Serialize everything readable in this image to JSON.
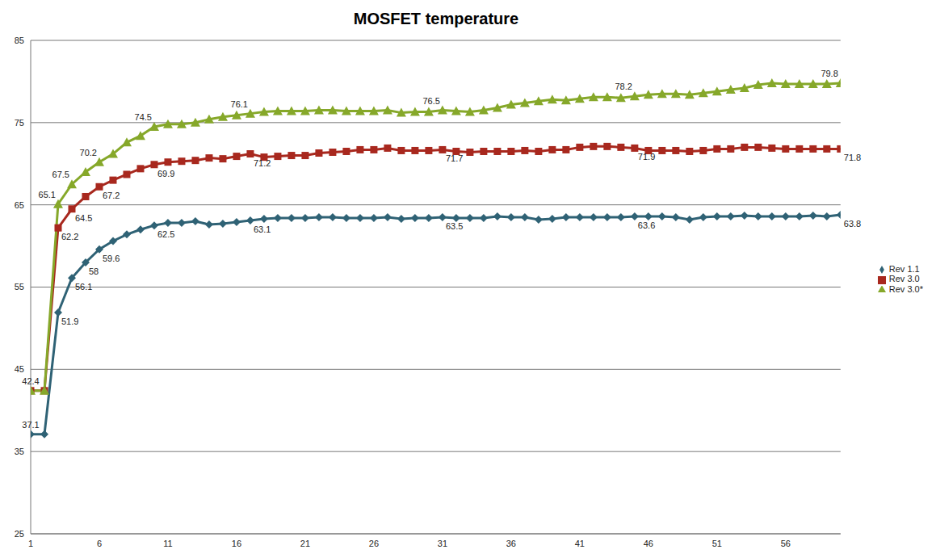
{
  "chart_data": {
    "type": "line",
    "title": "MOSFET temperature",
    "x": [
      1,
      2,
      3,
      4,
      5,
      6,
      7,
      8,
      9,
      10,
      11,
      12,
      13,
      14,
      15,
      16,
      17,
      18,
      19,
      20,
      21,
      22,
      23,
      24,
      25,
      26,
      27,
      28,
      29,
      30,
      31,
      32,
      33,
      34,
      35,
      36,
      37,
      38,
      39,
      40,
      41,
      42,
      43,
      44,
      45,
      46,
      47,
      48,
      49,
      50,
      51,
      52,
      53,
      54,
      55,
      56,
      57,
      58,
      59,
      60
    ],
    "xlim": [
      1,
      60
    ],
    "xticks": [
      1,
      6,
      11,
      16,
      21,
      26,
      31,
      36,
      41,
      46,
      51,
      56
    ],
    "ylim": [
      25,
      85
    ],
    "yticks": [
      25,
      35,
      45,
      55,
      65,
      75,
      85
    ],
    "grid": true,
    "legend": "right",
    "series": [
      {
        "name": "Rev 1.1",
        "color": "#2f6275",
        "marker": "diamond",
        "values": [
          37.1,
          37.1,
          51.9,
          56.1,
          58,
          59.6,
          60.6,
          61.4,
          62.0,
          62.5,
          62.8,
          62.8,
          63.0,
          62.6,
          62.7,
          62.9,
          63.1,
          63.3,
          63.4,
          63.4,
          63.4,
          63.5,
          63.5,
          63.4,
          63.4,
          63.4,
          63.5,
          63.3,
          63.4,
          63.4,
          63.5,
          63.4,
          63.4,
          63.4,
          63.6,
          63.5,
          63.5,
          63.2,
          63.3,
          63.5,
          63.5,
          63.5,
          63.5,
          63.5,
          63.6,
          63.6,
          63.6,
          63.5,
          63.2,
          63.5,
          63.6,
          63.6,
          63.7,
          63.6,
          63.6,
          63.6,
          63.6,
          63.7,
          63.6,
          63.8
        ],
        "value_labels": [
          "37.1",
          null,
          "51.9",
          "56.1",
          "58",
          "59.6",
          null,
          null,
          null,
          "62.5",
          null,
          null,
          null,
          null,
          null,
          null,
          "63.1",
          null,
          null,
          null,
          null,
          null,
          null,
          null,
          null,
          null,
          null,
          null,
          null,
          null,
          "63.5",
          null,
          null,
          null,
          null,
          null,
          null,
          null,
          null,
          null,
          null,
          null,
          null,
          null,
          "63.6",
          null,
          null,
          null,
          null,
          null,
          null,
          null,
          null,
          null,
          null,
          null,
          null,
          null,
          null,
          "63.8"
        ]
      },
      {
        "name": "Rev 3.0",
        "color": "#a8281e",
        "marker": "square",
        "values": [
          42.4,
          42.4,
          62.2,
          64.5,
          66.0,
          67.2,
          68.0,
          68.7,
          69.4,
          69.9,
          70.2,
          70.3,
          70.4,
          70.7,
          70.6,
          70.9,
          71.2,
          70.8,
          70.9,
          71.0,
          71.0,
          71.3,
          71.4,
          71.5,
          71.7,
          71.7,
          71.9,
          71.6,
          71.6,
          71.6,
          71.7,
          71.5,
          71.4,
          71.5,
          71.5,
          71.5,
          71.6,
          71.5,
          71.7,
          71.7,
          72.0,
          72.1,
          72.1,
          72.0,
          71.9,
          71.6,
          71.6,
          71.6,
          71.5,
          71.6,
          71.8,
          71.8,
          72.0,
          72.0,
          71.9,
          71.8,
          71.8,
          71.8,
          71.8,
          71.8
        ],
        "value_labels": [
          "42.4",
          null,
          "62.2",
          "64.5",
          null,
          "67.2",
          null,
          null,
          null,
          "69.9",
          null,
          null,
          null,
          null,
          null,
          null,
          "71.2",
          null,
          null,
          null,
          null,
          null,
          null,
          null,
          null,
          null,
          null,
          null,
          null,
          null,
          "71.7",
          null,
          null,
          null,
          null,
          null,
          null,
          null,
          null,
          null,
          null,
          null,
          null,
          null,
          "71.9",
          null,
          null,
          null,
          null,
          null,
          null,
          null,
          null,
          null,
          null,
          null,
          null,
          null,
          null,
          "71.8"
        ]
      },
      {
        "name": "Rev 3.0*",
        "color": "#86a82a",
        "marker": "triangle",
        "values": [
          42.4,
          42.4,
          65.1,
          67.5,
          69.0,
          70.2,
          71.2,
          72.6,
          73.4,
          74.5,
          74.8,
          74.8,
          75.0,
          75.4,
          75.7,
          75.9,
          76.1,
          76.3,
          76.4,
          76.4,
          76.4,
          76.5,
          76.5,
          76.4,
          76.4,
          76.4,
          76.5,
          76.2,
          76.3,
          76.3,
          76.5,
          76.4,
          76.3,
          76.5,
          76.8,
          77.2,
          77.4,
          77.6,
          77.8,
          77.7,
          77.9,
          78.1,
          78.1,
          78.0,
          78.2,
          78.4,
          78.5,
          78.5,
          78.4,
          78.6,
          78.8,
          79.0,
          79.2,
          79.6,
          79.8,
          79.7,
          79.7,
          79.7,
          79.7,
          79.8
        ],
        "value_labels": [
          null,
          null,
          "65.1",
          "67.5",
          null,
          "70.2",
          null,
          null,
          null,
          "74.5",
          null,
          null,
          null,
          null,
          null,
          null,
          "76.1",
          null,
          null,
          null,
          null,
          null,
          null,
          null,
          null,
          null,
          null,
          null,
          null,
          null,
          "76.5",
          null,
          null,
          null,
          null,
          null,
          null,
          null,
          null,
          null,
          null,
          null,
          null,
          null,
          "78.2",
          null,
          null,
          null,
          null,
          null,
          null,
          null,
          null,
          null,
          null,
          null,
          null,
          null,
          null,
          "79.8"
        ]
      }
    ]
  }
}
